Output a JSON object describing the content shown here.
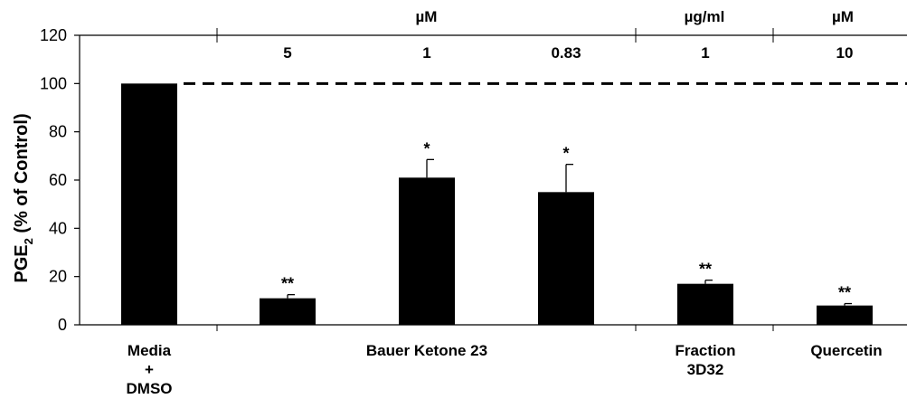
{
  "chart_data": {
    "type": "bar",
    "ylabel_main": "PGE",
    "ylabel_sub": "2",
    "ylabel_rest": " (% of Control)",
    "ylim": [
      0,
      120
    ],
    "yticks": [
      0,
      20,
      40,
      60,
      80,
      100,
      120
    ],
    "grid": false,
    "reference_line": 100,
    "bars": [
      {
        "value": 100,
        "error": 0,
        "sig": "",
        "conc": ""
      },
      {
        "value": 11,
        "error": 1.5,
        "sig": "**",
        "conc": "5"
      },
      {
        "value": 61,
        "error": 7.5,
        "sig": "*",
        "conc": "1"
      },
      {
        "value": 55,
        "error": 11.5,
        "sig": "*",
        "conc": "0.83"
      },
      {
        "value": 17,
        "error": 1.5,
        "sig": "**",
        "conc": "1"
      },
      {
        "value": 8,
        "error": 0.8,
        "sig": "**",
        "conc": "10"
      }
    ],
    "unit_headers": [
      "µM",
      "µg/ml",
      "µM"
    ],
    "groups": [
      {
        "lines": [
          "Media",
          "+",
          "DMSO"
        ]
      },
      {
        "lines": [
          "Bauer Ketone 23"
        ]
      },
      {
        "lines": [
          "Fraction",
          "3D32"
        ]
      },
      {
        "lines": [
          "Quercetin"
        ]
      }
    ]
  }
}
